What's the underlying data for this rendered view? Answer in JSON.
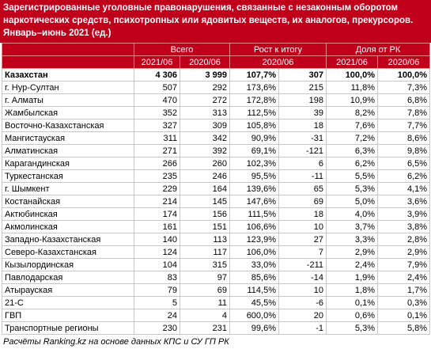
{
  "header": {
    "title": "Зарегистрированные уголовные правонарушения, связанные с незаконным оборотом наркотических средств, психотропных или ядовитых веществ, их аналогов, прекурсоров. Январь–июнь 2021 (ед.)"
  },
  "table": {
    "groups": [
      "Всего",
      "Рост к итогу",
      "Доля от РК"
    ],
    "subheaders": [
      "2021/06",
      "2020/06",
      "2020/06",
      "2021/06",
      "2020/06"
    ],
    "rows": [
      [
        "Казахстан",
        "4 306",
        "3 999",
        "107,7%",
        "307",
        "100,0%",
        "100,0%"
      ],
      [
        "г. Нур-Султан",
        "507",
        "292",
        "173,6%",
        "215",
        "11,8%",
        "7,3%"
      ],
      [
        "г. Алматы",
        "470",
        "272",
        "172,8%",
        "198",
        "10,9%",
        "6,8%"
      ],
      [
        "Жамбылская",
        "352",
        "313",
        "112,5%",
        "39",
        "8,2%",
        "7,8%"
      ],
      [
        "Восточно-Казахстанская",
        "327",
        "309",
        "105,8%",
        "18",
        "7,6%",
        "7,7%"
      ],
      [
        "Мангистауская",
        "311",
        "342",
        "90,9%",
        "-31",
        "7,2%",
        "8,6%"
      ],
      [
        "Алматинская",
        "271",
        "392",
        "69,1%",
        "-121",
        "6,3%",
        "9,8%"
      ],
      [
        "Карагандинская",
        "266",
        "260",
        "102,3%",
        "6",
        "6,2%",
        "6,5%"
      ],
      [
        "Туркестанская",
        "235",
        "246",
        "95,5%",
        "-11",
        "5,5%",
        "6,2%"
      ],
      [
        "г. Шымкент",
        "229",
        "164",
        "139,6%",
        "65",
        "5,3%",
        "4,1%"
      ],
      [
        "Костанайская",
        "214",
        "145",
        "147,6%",
        "69",
        "5,0%",
        "3,6%"
      ],
      [
        "Актюбинская",
        "174",
        "156",
        "111,5%",
        "18",
        "4,0%",
        "3,9%"
      ],
      [
        "Акмолинская",
        "161",
        "151",
        "106,6%",
        "10",
        "3,7%",
        "3,8%"
      ],
      [
        "Западно-Казахстанская",
        "140",
        "113",
        "123,9%",
        "27",
        "3,3%",
        "2,8%"
      ],
      [
        "Северо-Казахстанская",
        "124",
        "117",
        "106,0%",
        "7",
        "2,9%",
        "2,9%"
      ],
      [
        "Кызылординская",
        "104",
        "315",
        "33,0%",
        "-211",
        "2,4%",
        "7,9%"
      ],
      [
        "Павлодарская",
        "83",
        "97",
        "85,6%",
        "-14",
        "1,9%",
        "2,4%"
      ],
      [
        "Атырауская",
        "79",
        "69",
        "114,5%",
        "10",
        "1,8%",
        "1,7%"
      ],
      [
        "21-С",
        "5",
        "11",
        "45,5%",
        "-6",
        "0,1%",
        "0,3%"
      ],
      [
        "ГВП",
        "24",
        "4",
        "600,0%",
        "20",
        "0,6%",
        "0,1%"
      ],
      [
        "Транспортные регионы",
        "230",
        "231",
        "99,6%",
        "-1",
        "5,3%",
        "5,8%"
      ]
    ]
  },
  "footer": {
    "source": "Расчёты Ranking.kz на основе данных КПС и СУ ГП РК"
  }
}
